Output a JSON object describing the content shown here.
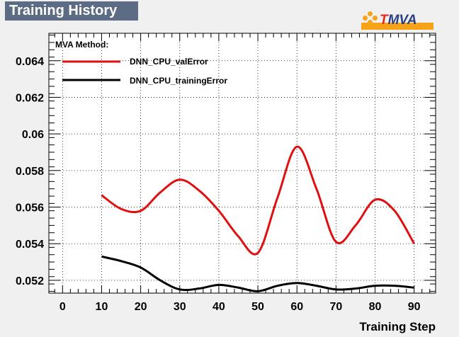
{
  "header": {
    "title": "Training History"
  },
  "logo": {
    "text_t": "T",
    "text_rest": "MVA"
  },
  "legend": {
    "header": "MVA Method:",
    "entries": [
      {
        "label": "DNN_CPU_valError",
        "color": "#e01010"
      },
      {
        "label": "DNN_CPU_trainingError",
        "color": "#000000"
      }
    ]
  },
  "chart_data": {
    "type": "line",
    "xlabel": "Training Step",
    "ylabel": "",
    "xlim": [
      -3.5,
      95.5
    ],
    "ylim": [
      0.0513,
      0.0655
    ],
    "x_ticks": [
      0,
      10,
      20,
      30,
      40,
      50,
      60,
      70,
      80,
      90
    ],
    "y_ticks": [
      0.052,
      0.054,
      0.056,
      0.058,
      0.06,
      0.062,
      0.064
    ],
    "y_tick_labels": [
      "0.052",
      "0.054",
      "0.056",
      "0.058",
      "0.06",
      "0.062",
      "0.064"
    ],
    "grid": true,
    "legend_position": "top-left",
    "series": [
      {
        "name": "DNN_CPU_valError",
        "color": "#e01010",
        "x": [
          10,
          15,
          20,
          25,
          30,
          35,
          40,
          45,
          50,
          55,
          60,
          65,
          70,
          75,
          80,
          85,
          90
        ],
        "y": [
          0.05665,
          0.0559,
          0.0558,
          0.0568,
          0.0575,
          0.0569,
          0.0558,
          0.0544,
          0.0535,
          0.0565,
          0.0593,
          0.057,
          0.0541,
          0.055,
          0.0564,
          0.0558,
          0.054
        ]
      },
      {
        "name": "DNN_CPU_trainingError",
        "color": "#000000",
        "x": [
          10,
          15,
          20,
          25,
          30,
          35,
          40,
          45,
          50,
          55,
          60,
          65,
          70,
          75,
          80,
          85,
          90
        ],
        "y": [
          0.0533,
          0.05305,
          0.0527,
          0.052,
          0.0515,
          0.05155,
          0.05175,
          0.0516,
          0.0514,
          0.0517,
          0.05185,
          0.0517,
          0.0515,
          0.05155,
          0.0517,
          0.0517,
          0.0516
        ]
      }
    ]
  }
}
